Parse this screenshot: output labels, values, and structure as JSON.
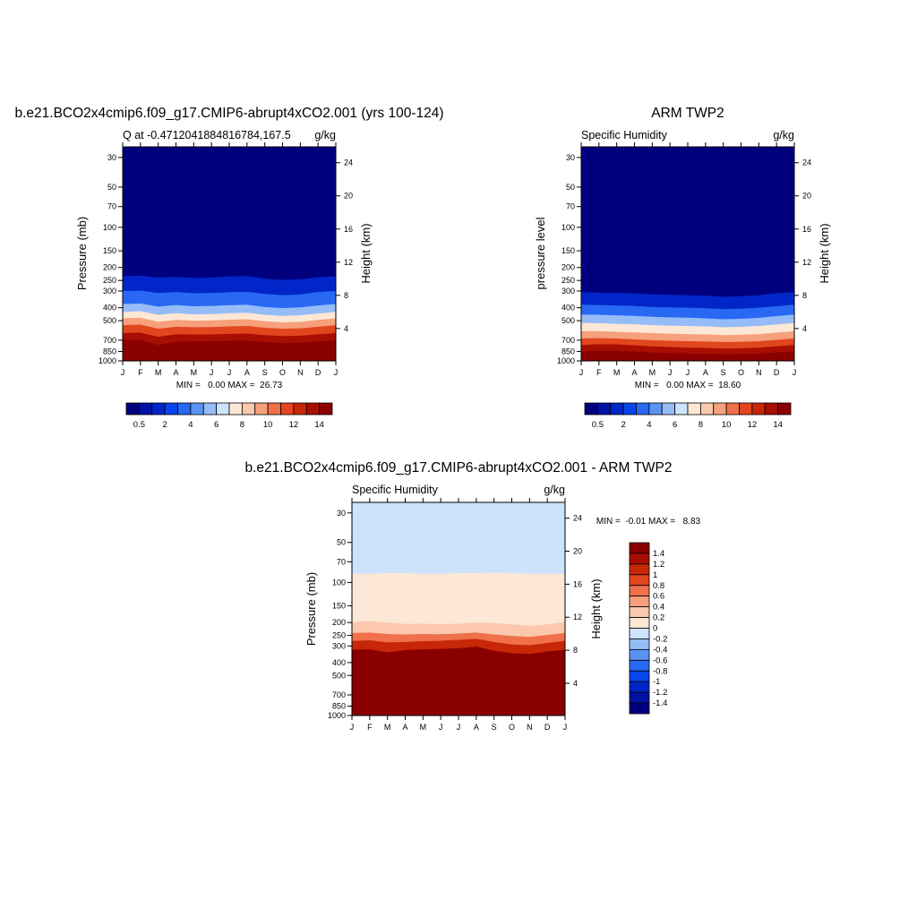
{
  "chart_data": [
    {
      "type": "heatmap",
      "title": "b.e21.BCO2x4cmip6.f09_g17.CMIP6-abrupt4xCO2.001 (yrs 100-124)",
      "subtitle_left": "Q at -0.4712041884816784,167.5",
      "subtitle_right": "g/kg",
      "ylabel": "Pressure (mb)",
      "ylabel_right": "Height (km)",
      "x_tick_labels": [
        "J",
        "F",
        "M",
        "A",
        "M",
        "J",
        "J",
        "A",
        "S",
        "O",
        "N",
        "D",
        "J"
      ],
      "y_ticks": [
        30,
        50,
        70,
        100,
        150,
        200,
        250,
        300,
        400,
        500,
        700,
        850,
        1000
      ],
      "y_ticks_right": [
        24,
        20,
        16,
        12,
        8,
        4
      ],
      "ylim": [
        1000,
        25
      ],
      "y_scale": "log",
      "minmax_label": "MIN =   0.00 MAX =  26.73",
      "min": 0.0,
      "max": 26.73,
      "colorbar": {
        "orientation": "horizontal",
        "colors": [
          "#00007f",
          "#0011a4",
          "#0026c9",
          "#0844eb",
          "#2868f2",
          "#5b92f5",
          "#96bcf8",
          "#cde2fb",
          "#fde7d6",
          "#fbc8ae",
          "#f6a07c",
          "#ef704a",
          "#e2461e",
          "#c72707",
          "#a80e02",
          "#8a0000"
        ],
        "tick_labels": [
          "0.5",
          "2",
          "4",
          "6",
          "8",
          "10",
          "12",
          "14"
        ]
      },
      "contour_pressure_levels_mb": {
        "months": [
          0,
          1,
          2,
          3,
          4,
          5,
          6,
          7,
          8,
          9,
          10,
          11,
          12
        ],
        "q_0.5": [
          232,
          230,
          238,
          235,
          240,
          238,
          233,
          232,
          242,
          248,
          245,
          236,
          232
        ],
        "q_2": [
          300,
          298,
          310,
          305,
          312,
          310,
          306,
          304,
          315,
          322,
          318,
          305,
          300
        ],
        "q_4": [
          375,
          372,
          392,
          382,
          390,
          388,
          383,
          380,
          395,
          402,
          398,
          385,
          375
        ],
        "q_6": [
          430,
          425,
          452,
          440,
          448,
          446,
          440,
          436,
          452,
          460,
          456,
          442,
          430
        ],
        "q_8": [
          480,
          475,
          510,
          494,
          500,
          498,
          492,
          488,
          505,
          515,
          510,
          494,
          480
        ],
        "q_10": [
          540,
          535,
          575,
          555,
          560,
          558,
          552,
          548,
          565,
          575,
          570,
          555,
          540
        ],
        "q_12": [
          620,
          615,
          660,
          632,
          636,
          634,
          628,
          625,
          642,
          652,
          648,
          632,
          620
        ],
        "q_14": [
          700,
          695,
          760,
          720,
          715,
          712,
          708,
          705,
          722,
          735,
          730,
          715,
          700
        ]
      }
    },
    {
      "type": "heatmap",
      "title": "ARM TWP2",
      "subtitle_left": "Specific Humidity",
      "subtitle_right": "g/kg",
      "ylabel": "pressure level",
      "ylabel_right": "Height (km)",
      "x_tick_labels": [
        "J",
        "F",
        "M",
        "A",
        "M",
        "J",
        "J",
        "A",
        "S",
        "O",
        "N",
        "D",
        "J"
      ],
      "y_ticks": [
        30,
        50,
        70,
        100,
        150,
        200,
        250,
        300,
        400,
        500,
        700,
        850,
        1000
      ],
      "y_ticks_right": [
        24,
        20,
        16,
        12,
        8,
        4
      ],
      "ylim": [
        1000,
        25
      ],
      "y_scale": "log",
      "minmax_label": "MIN =   0.00 MAX =  18.60",
      "min": 0.0,
      "max": 18.6,
      "colorbar": {
        "orientation": "horizontal",
        "colors": [
          "#00007f",
          "#0011a4",
          "#0026c9",
          "#0844eb",
          "#2868f2",
          "#5b92f5",
          "#96bcf8",
          "#cde2fb",
          "#fde7d6",
          "#fbc8ae",
          "#f6a07c",
          "#ef704a",
          "#e2461e",
          "#c72707",
          "#a80e02",
          "#8a0000"
        ],
        "tick_labels": [
          "0.5",
          "2",
          "4",
          "6",
          "8",
          "10",
          "12",
          "14"
        ]
      },
      "contour_pressure_levels_mb": {
        "months": [
          0,
          1,
          2,
          3,
          4,
          5,
          6,
          7,
          8,
          9,
          10,
          11,
          12
        ],
        "q_0.5": [
          305,
          308,
          310,
          312,
          318,
          320,
          322,
          325,
          332,
          328,
          322,
          312,
          305
        ],
        "q_2": [
          380,
          382,
          385,
          388,
          395,
          398,
          400,
          404,
          410,
          406,
          400,
          390,
          380
        ],
        "q_4": [
          450,
          452,
          456,
          460,
          468,
          472,
          475,
          480,
          488,
          484,
          476,
          462,
          450
        ],
        "q_6": [
          520,
          522,
          528,
          532,
          540,
          545,
          548,
          552,
          560,
          556,
          548,
          534,
          520
        ],
        "q_8": [
          600,
          600,
          606,
          612,
          620,
          626,
          630,
          634,
          642,
          638,
          630,
          614,
          600
        ],
        "q_10": [
          680,
          675,
          680,
          690,
          700,
          706,
          712,
          716,
          722,
          720,
          712,
          696,
          680
        ],
        "q_12": [
          760,
          750,
          752,
          765,
          780,
          788,
          795,
          800,
          808,
          805,
          796,
          778,
          760
        ],
        "q_14": [
          850,
          838,
          840,
          852,
          866,
          874,
          880,
          884,
          892,
          890,
          882,
          866,
          850
        ]
      }
    },
    {
      "type": "heatmap",
      "title": "b.e21.BCO2x4cmip6.f09_g17.CMIP6-abrupt4xCO2.001 - ARM TWP2",
      "subtitle_left": "Specific Humidity",
      "subtitle_right": "g/kg",
      "ylabel": "Pressure (mb)",
      "ylabel_right": "Height (km)",
      "x_tick_labels": [
        "J",
        "F",
        "M",
        "A",
        "M",
        "J",
        "J",
        "A",
        "S",
        "O",
        "N",
        "D",
        "J"
      ],
      "y_ticks": [
        30,
        50,
        70,
        100,
        150,
        200,
        250,
        300,
        400,
        500,
        700,
        850,
        1000
      ],
      "y_ticks_right": [
        24,
        20,
        16,
        12,
        8,
        4
      ],
      "ylim": [
        1000,
        25
      ],
      "y_scale": "log",
      "minmax_label": "MIN =  -0.01 MAX =   8.83",
      "min": -0.01,
      "max": 8.83,
      "colorbar": {
        "orientation": "vertical",
        "colors_top_to_bottom": [
          "#8a0000",
          "#a80e02",
          "#c72707",
          "#e2461e",
          "#ef704a",
          "#f6a07c",
          "#fbc8ae",
          "#fde7d6",
          "#cde2fb",
          "#96bcf8",
          "#5b92f5",
          "#2868f2",
          "#0844eb",
          "#0026c9",
          "#0011a4",
          "#00007f"
        ],
        "tick_labels_top_to_bottom": [
          "1.4",
          "1.2",
          "1",
          "0.8",
          "0.6",
          "0.4",
          "0.2",
          "0",
          "-0.2",
          "-0.4",
          "-0.6",
          "-0.8",
          "-1",
          "-1.2",
          "-1.4"
        ]
      },
      "contour_pressure_levels_mb": {
        "months": [
          0,
          1,
          2,
          3,
          4,
          5,
          6,
          7,
          8,
          9,
          10,
          11,
          12
        ],
        "d_0": [
          86,
          86,
          85,
          85,
          86,
          86,
          85,
          85,
          84,
          85,
          86,
          86,
          86
        ],
        "d_0.2": [
          198,
          195,
          200,
          205,
          204,
          206,
          204,
          200,
          202,
          206,
          212,
          206,
          198
        ],
        "d_0.6": [
          240,
          238,
          244,
          246,
          244,
          245,
          242,
          238,
          246,
          252,
          256,
          248,
          240
        ],
        "d_1.0": [
          275,
          272,
          282,
          280,
          276,
          274,
          270,
          265,
          280,
          292,
          296,
          285,
          275
        ],
        "d_1.4": [
          320,
          318,
          335,
          322,
          318,
          316,
          312,
          304,
          326,
          340,
          345,
          330,
          320
        ]
      }
    }
  ]
}
